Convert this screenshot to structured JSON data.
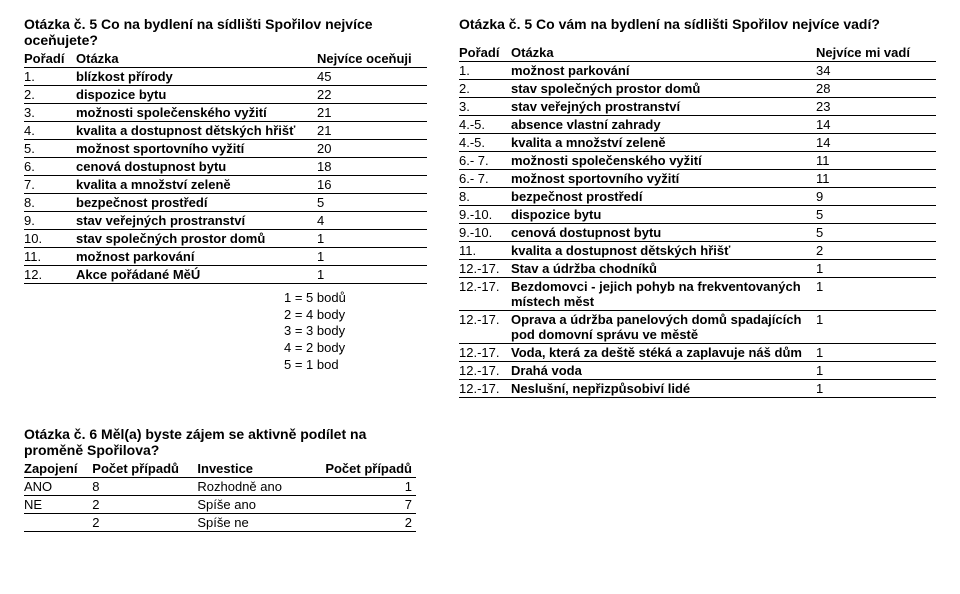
{
  "left": {
    "title": "Otázka č. 5 Co na bydlení na sídlišti Spořilov nejvíce oceňujete?",
    "headers": {
      "rank": "Pořadí",
      "item": "Otázka",
      "value": "Nejvíce oceňuji"
    },
    "rows": [
      {
        "rank": "1.",
        "item": "blízkost přírody",
        "value": "45"
      },
      {
        "rank": "2.",
        "item": "dispozice bytu",
        "value": "22"
      },
      {
        "rank": "3.",
        "item": "možnosti společenského vyžití",
        "value": "21"
      },
      {
        "rank": "4.",
        "item": "kvalita a dostupnost dětských hřišť",
        "value": "21"
      },
      {
        "rank": "5.",
        "item": "možnost sportovního vyžití",
        "value": "20"
      },
      {
        "rank": "6.",
        "item": "cenová dostupnost bytu",
        "value": "18"
      },
      {
        "rank": "7.",
        "item": "kvalita a množství zeleně",
        "value": "16"
      },
      {
        "rank": "8.",
        "item": "bezpečnost prostředí",
        "value": "5"
      },
      {
        "rank": "9.",
        "item": "stav veřejných prostranství",
        "value": "4"
      },
      {
        "rank": "10.",
        "item": "stav společných prostor domů",
        "value": "1"
      },
      {
        "rank": "11.",
        "item": "možnost parkování",
        "value": "1"
      },
      {
        "rank": "12.",
        "item": "Akce pořádané MěÚ",
        "value": "1"
      }
    ],
    "scoreKey": [
      "1 = 5 bodů",
      "2 = 4 body",
      "3 = 3 body",
      "4 = 2 body",
      "5 = 1 bod"
    ]
  },
  "right": {
    "title": "Otázka č. 5 Co vám na bydlení na sídlišti Spořilov nejvíce vadí?",
    "headers": {
      "rank": "Pořadí",
      "item": "Otázka",
      "value": "Nejvíce mi vadí"
    },
    "rows": [
      {
        "rank": "1.",
        "item": "možnost parkování",
        "value": "34"
      },
      {
        "rank": "2.",
        "item": "stav společných prostor domů",
        "value": "28"
      },
      {
        "rank": "3.",
        "item": "stav veřejných prostranství",
        "value": "23"
      },
      {
        "rank": "4.-5.",
        "item": "absence vlastní zahrady",
        "value": "14"
      },
      {
        "rank": "4.-5.",
        "item": "kvalita a množství zeleně",
        "value": "14"
      },
      {
        "rank": "6.- 7.",
        "item": "možnosti společenského vyžití",
        "value": "11"
      },
      {
        "rank": "6.- 7.",
        "item": "možnost sportovního vyžití",
        "value": "11"
      },
      {
        "rank": "8.",
        "item": "bezpečnost prostředí",
        "value": "9"
      },
      {
        "rank": "9.-10.",
        "item": "dispozice bytu",
        "value": "5"
      },
      {
        "rank": "9.-10.",
        "item": "cenová dostupnost bytu",
        "value": "5"
      },
      {
        "rank": "11.",
        "item": "kvalita a dostupnost dětských hřišť",
        "value": "2"
      },
      {
        "rank": "12.-17.",
        "item": "Stav a údržba chodníků",
        "value": "1"
      },
      {
        "rank": "12.-17.",
        "item": "Bezdomovci - jejich pohyb na frekventovaných místech měst",
        "value": "1"
      },
      {
        "rank": "12.-17.",
        "item": "Oprava a údržba panelových domů spadajících pod domovní správu ve městě",
        "value": "1"
      },
      {
        "rank": "12.-17.",
        "item": "Voda, která za deště stéká a zaplavuje náš dům",
        "value": "1"
      },
      {
        "rank": "12.-17.",
        "item": "Drahá voda",
        "value": "1"
      },
      {
        "rank": "12.-17.",
        "item": "Neslušní, nepřizpůsobiví lidé",
        "value": "1"
      }
    ]
  },
  "bottom": {
    "title": "Otázka č. 6 Měl(a) byste zájem se aktivně podílet na proměně Spořilova?",
    "headers": {
      "c1": "Zapojení",
      "c2": "Počet případů",
      "c3": "Investice",
      "c4": "Počet případů"
    },
    "rows": [
      {
        "c1": "ANO",
        "c2": "8",
        "c3": "Rozhodně ano",
        "c4": "1"
      },
      {
        "c1": "NE",
        "c2": "2",
        "c3": "Spíše ano",
        "c4": "7"
      },
      {
        "c1": "",
        "c2": "2",
        "c3": "Spíše ne",
        "c4": "2"
      }
    ]
  }
}
